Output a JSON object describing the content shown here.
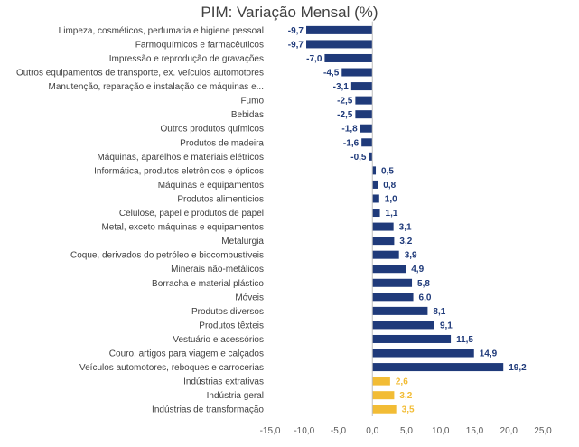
{
  "chart_data": {
    "type": "bar",
    "orientation": "horizontal",
    "title": "PIM: Variação Mensal (%)",
    "xlim": [
      -15,
      25
    ],
    "x_ticks": [
      "-15,0",
      "-10,0",
      "-5,0",
      "0,0",
      "5,0",
      "10,0",
      "15,0",
      "20,0",
      "25,0"
    ],
    "grid": false,
    "legend": "none",
    "colors": {
      "sector": "#1f3a7a",
      "aggregate": "#f2bc35",
      "sector_label": "#1f3a7a",
      "aggregate_label": "#f2bc35"
    },
    "categories": [
      "Limpeza, cosméticos, perfumaria e higiene pessoal",
      "Farmoquímicos e farmacêuticos",
      "Impressão e reprodução de gravações",
      "Outros equipamentos de transporte, ex. veículos automotores",
      "Manutenção, reparação e instalação de máquinas e...",
      "Fumo",
      "Bebidas",
      "Outros produtos químicos",
      "Produtos de madeira",
      "Máquinas, aparelhos e materiais elétricos",
      "Informática, produtos eletrônicos e ópticos",
      "Máquinas e equipamentos",
      "Produtos alimentícios",
      "Celulose, papel e produtos de papel",
      "Metal, exceto máquinas e equipamentos",
      "Metalurgia",
      "Coque, derivados do petróleo e biocombustíveis",
      "Minerais não-metálicos",
      "Borracha e material plástico",
      "Móveis",
      "Produtos diversos",
      "Produtos têxteis",
      "Vestuário e acessórios",
      "Couro, artigos para viagem e calçados",
      "Veículos automotores, reboques e carrocerias",
      "Indústrias extrativas",
      "Indústria geral",
      "Indústrias de transformação"
    ],
    "values": [
      -9.7,
      -9.7,
      -7.0,
      -4.5,
      -3.1,
      -2.5,
      -2.5,
      -1.8,
      -1.6,
      -0.5,
      0.5,
      0.8,
      1.0,
      1.1,
      3.1,
      3.2,
      3.9,
      4.9,
      5.8,
      6.0,
      8.1,
      9.1,
      11.5,
      14.9,
      19.2,
      2.6,
      3.2,
      3.5
    ],
    "value_labels": [
      "-9,7",
      "-9,7",
      "-7,0",
      "-4,5",
      "-3,1",
      "-2,5",
      "-2,5",
      "-1,8",
      "-1,6",
      "-0,5",
      "0,5",
      "0,8",
      "1,0",
      "1,1",
      "3,1",
      "3,2",
      "3,9",
      "4,9",
      "5,8",
      "6,0",
      "8,1",
      "9,1",
      "11,5",
      "14,9",
      "19,2",
      "2,6",
      "3,2",
      "3,5"
    ],
    "group": [
      "sector",
      "sector",
      "sector",
      "sector",
      "sector",
      "sector",
      "sector",
      "sector",
      "sector",
      "sector",
      "sector",
      "sector",
      "sector",
      "sector",
      "sector",
      "sector",
      "sector",
      "sector",
      "sector",
      "sector",
      "sector",
      "sector",
      "sector",
      "sector",
      "sector",
      "aggregate",
      "aggregate",
      "aggregate"
    ]
  }
}
